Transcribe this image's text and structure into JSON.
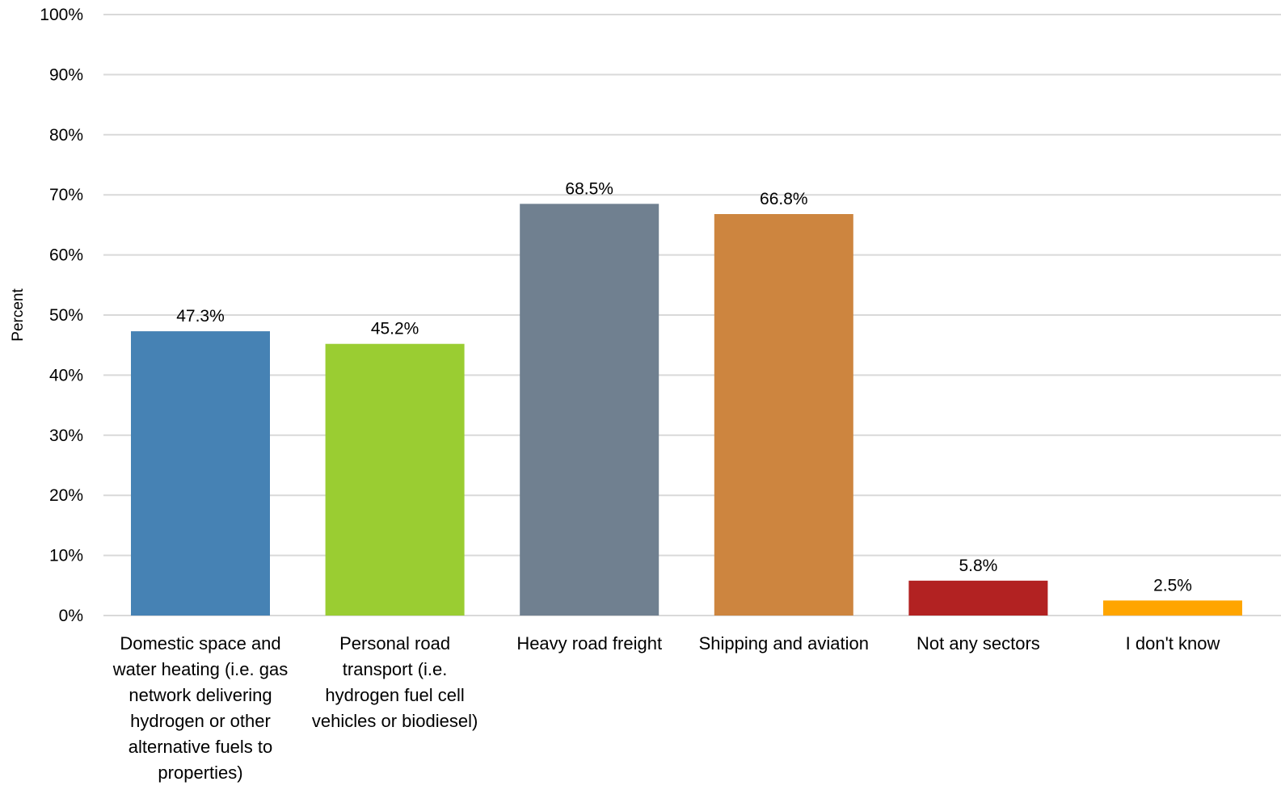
{
  "chart_data": {
    "type": "bar",
    "title": "",
    "xlabel": "",
    "ylabel": "Percent",
    "ylim": [
      0,
      100
    ],
    "y_ticks": [
      "0%",
      "10%",
      "20%",
      "30%",
      "40%",
      "50%",
      "60%",
      "70%",
      "80%",
      "90%",
      "100%"
    ],
    "grid": true,
    "legend": "none",
    "categories": [
      [
        "Domestic space and",
        "water heating (i.e. gas",
        "network delivering",
        "hydrogen or other",
        "alternative fuels to",
        "properties)"
      ],
      [
        "Personal road",
        "transport (i.e.",
        "hydrogen fuel cell",
        "vehicles or biodiesel)"
      ],
      [
        "Heavy road freight"
      ],
      [
        "Shipping and aviation"
      ],
      [
        "Not any sectors"
      ],
      [
        "I don't know"
      ]
    ],
    "values": [
      47.3,
      45.2,
      68.5,
      66.8,
      5.8,
      2.5
    ],
    "data_labels": [
      "47.3%",
      "45.2%",
      "68.5%",
      "66.8%",
      "5.8%",
      "2.5%"
    ],
    "colors": [
      "#4682b4",
      "#9acd32",
      "#708090",
      "#cd853f",
      "#b22222",
      "#ffa500"
    ]
  }
}
